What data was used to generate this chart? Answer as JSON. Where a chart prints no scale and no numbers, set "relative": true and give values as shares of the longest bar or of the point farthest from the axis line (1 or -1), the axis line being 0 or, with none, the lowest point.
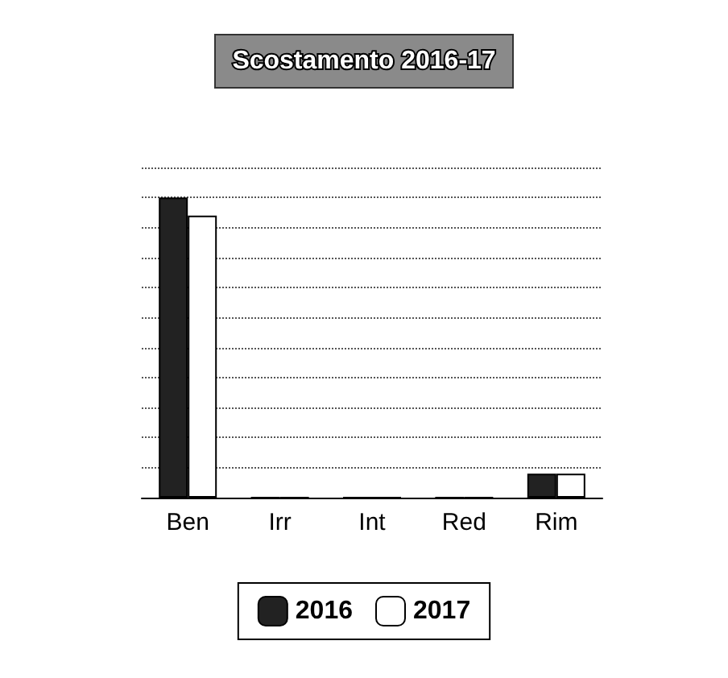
{
  "chart_data": {
    "type": "bar",
    "title": "Scostamento 2016-17",
    "categories": [
      "Ben",
      "Irr",
      "Int",
      "Red",
      "Rim"
    ],
    "relative": true,
    "grid": "y",
    "legend": "bottom",
    "series": [
      {
        "name": "2016",
        "color": "#222222",
        "values": [
          1,
          0,
          0,
          0,
          0.08
        ]
      },
      {
        "name": "2017",
        "color": "#ffffff",
        "values": [
          0.94,
          0,
          0,
          0,
          0.08
        ]
      }
    ]
  }
}
